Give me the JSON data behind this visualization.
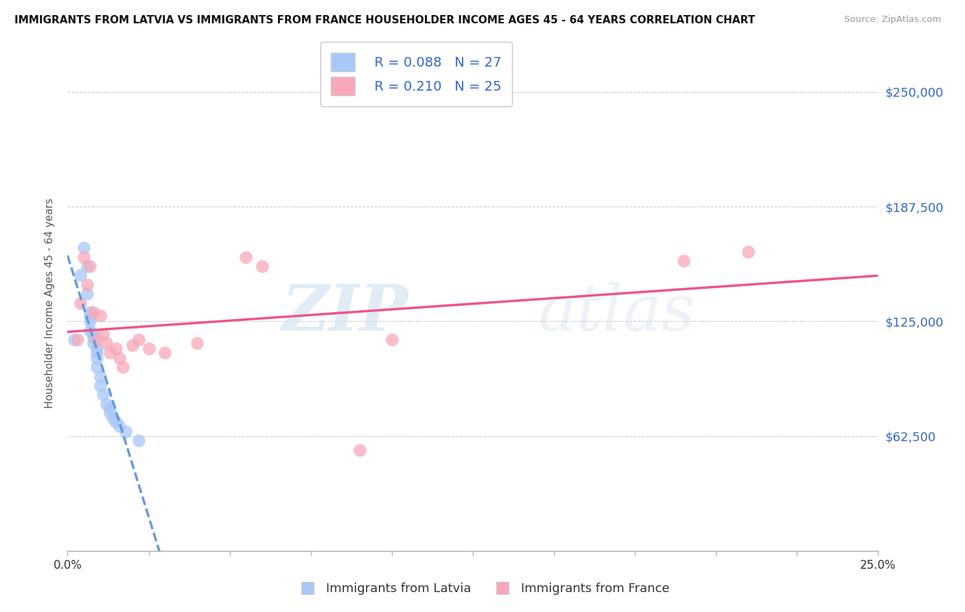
{
  "title": "IMMIGRANTS FROM LATVIA VS IMMIGRANTS FROM FRANCE HOUSEHOLDER INCOME AGES 45 - 64 YEARS CORRELATION CHART",
  "source": "Source: ZipAtlas.com",
  "ylabel": "Householder Income Ages 45 - 64 years",
  "xlim": [
    0.0,
    0.25
  ],
  "ylim": [
    0,
    270000
  ],
  "yticks": [
    62500,
    125000,
    187500,
    250000
  ],
  "ytick_labels": [
    "$62,500",
    "$125,000",
    "$187,500",
    "$250,000"
  ],
  "xticks": [
    0.0,
    0.025,
    0.05,
    0.075,
    0.1,
    0.125,
    0.15,
    0.175,
    0.2,
    0.225,
    0.25
  ],
  "xtick_labels_show": [
    "0.0%",
    "",
    "",
    "",
    "",
    "",
    "",
    "",
    "",
    "",
    "25.0%"
  ],
  "legend_R_latvia": "R = 0.088",
  "legend_N_latvia": "N = 27",
  "legend_R_france": "R = 0.210",
  "legend_N_france": "N = 25",
  "latvia_color": "#a8c8f8",
  "france_color": "#f8a8b8",
  "trend_latvia_color": "#6699dd",
  "trend_france_color": "#ee5588",
  "watermark_zip": "ZIP",
  "watermark_atlas": "atlas",
  "latvia_x": [
    0.002,
    0.004,
    0.005,
    0.006,
    0.006,
    0.007,
    0.007,
    0.007,
    0.007,
    0.008,
    0.008,
    0.008,
    0.009,
    0.009,
    0.009,
    0.009,
    0.01,
    0.01,
    0.011,
    0.012,
    0.013,
    0.013,
    0.014,
    0.015,
    0.016,
    0.018,
    0.022
  ],
  "latvia_y": [
    115000,
    150000,
    165000,
    155000,
    140000,
    130000,
    128000,
    125000,
    120000,
    118000,
    116000,
    113000,
    110000,
    108000,
    105000,
    100000,
    95000,
    90000,
    85000,
    80000,
    78000,
    75000,
    72000,
    70000,
    68000,
    65000,
    60000
  ],
  "france_x": [
    0.003,
    0.004,
    0.005,
    0.006,
    0.007,
    0.008,
    0.009,
    0.01,
    0.011,
    0.012,
    0.013,
    0.015,
    0.016,
    0.017,
    0.02,
    0.022,
    0.025,
    0.03,
    0.04,
    0.055,
    0.06,
    0.09,
    0.1,
    0.19,
    0.21
  ],
  "france_y": [
    115000,
    135000,
    160000,
    145000,
    155000,
    130000,
    115000,
    128000,
    118000,
    113000,
    108000,
    110000,
    105000,
    100000,
    112000,
    115000,
    110000,
    108000,
    113000,
    160000,
    155000,
    55000,
    115000,
    158000,
    163000
  ]
}
